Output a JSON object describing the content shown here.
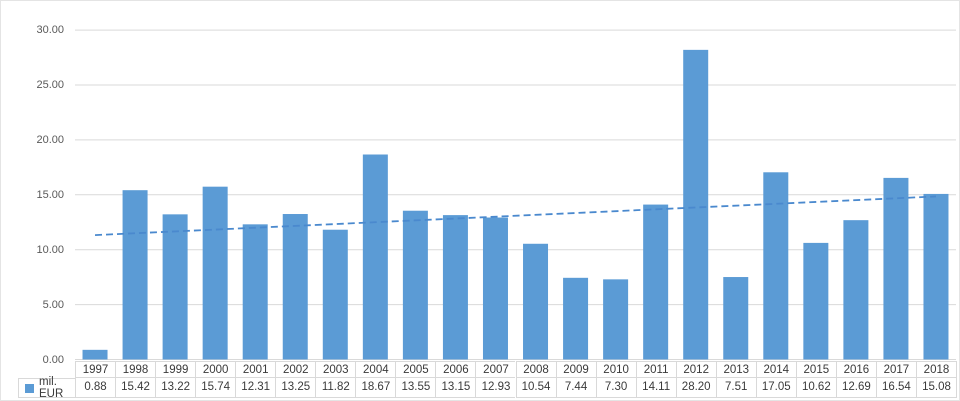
{
  "chart_data": {
    "type": "bar",
    "title": "",
    "xlabel": "",
    "ylabel": "",
    "categories": [
      "1997",
      "1998",
      "1999",
      "2000",
      "2001",
      "2002",
      "2003",
      "2004",
      "2005",
      "2006",
      "2007",
      "2008",
      "2009",
      "2010",
      "2011",
      "2012",
      "2013",
      "2014",
      "2015",
      "2016",
      "2017",
      "2018"
    ],
    "series": [
      {
        "name": "mil. EUR",
        "values": [
          0.88,
          15.42,
          13.22,
          15.74,
          12.31,
          13.25,
          11.82,
          18.67,
          13.55,
          13.15,
          12.93,
          10.54,
          7.44,
          7.3,
          14.11,
          28.2,
          7.51,
          17.05,
          10.62,
          12.69,
          16.54,
          15.08
        ]
      }
    ],
    "data_table": {
      "shown": true,
      "legend_key": "blue-square-icon",
      "rows": [
        "categories",
        "values"
      ],
      "value_format": "2-decimals"
    },
    "trendline": {
      "type": "linear",
      "dashed": true,
      "start_value": 11.33,
      "end_value": 14.85
    },
    "ylim": [
      0,
      30
    ],
    "ytick_step": 5,
    "ytick_labels": [
      "0.00",
      "5.00",
      "10.00",
      "15.00",
      "20.00",
      "25.00",
      "30.00"
    ],
    "grid": true,
    "legend_position": "data-table-left",
    "colors": {
      "bar": "#5b9bd5",
      "trendline": "#4a89ce",
      "gridline": "#d9d9d9",
      "axis_text": "#595959",
      "table_text": "#3a3a3a",
      "table_border": "#d9d9d9",
      "background": "#ffffff"
    }
  }
}
